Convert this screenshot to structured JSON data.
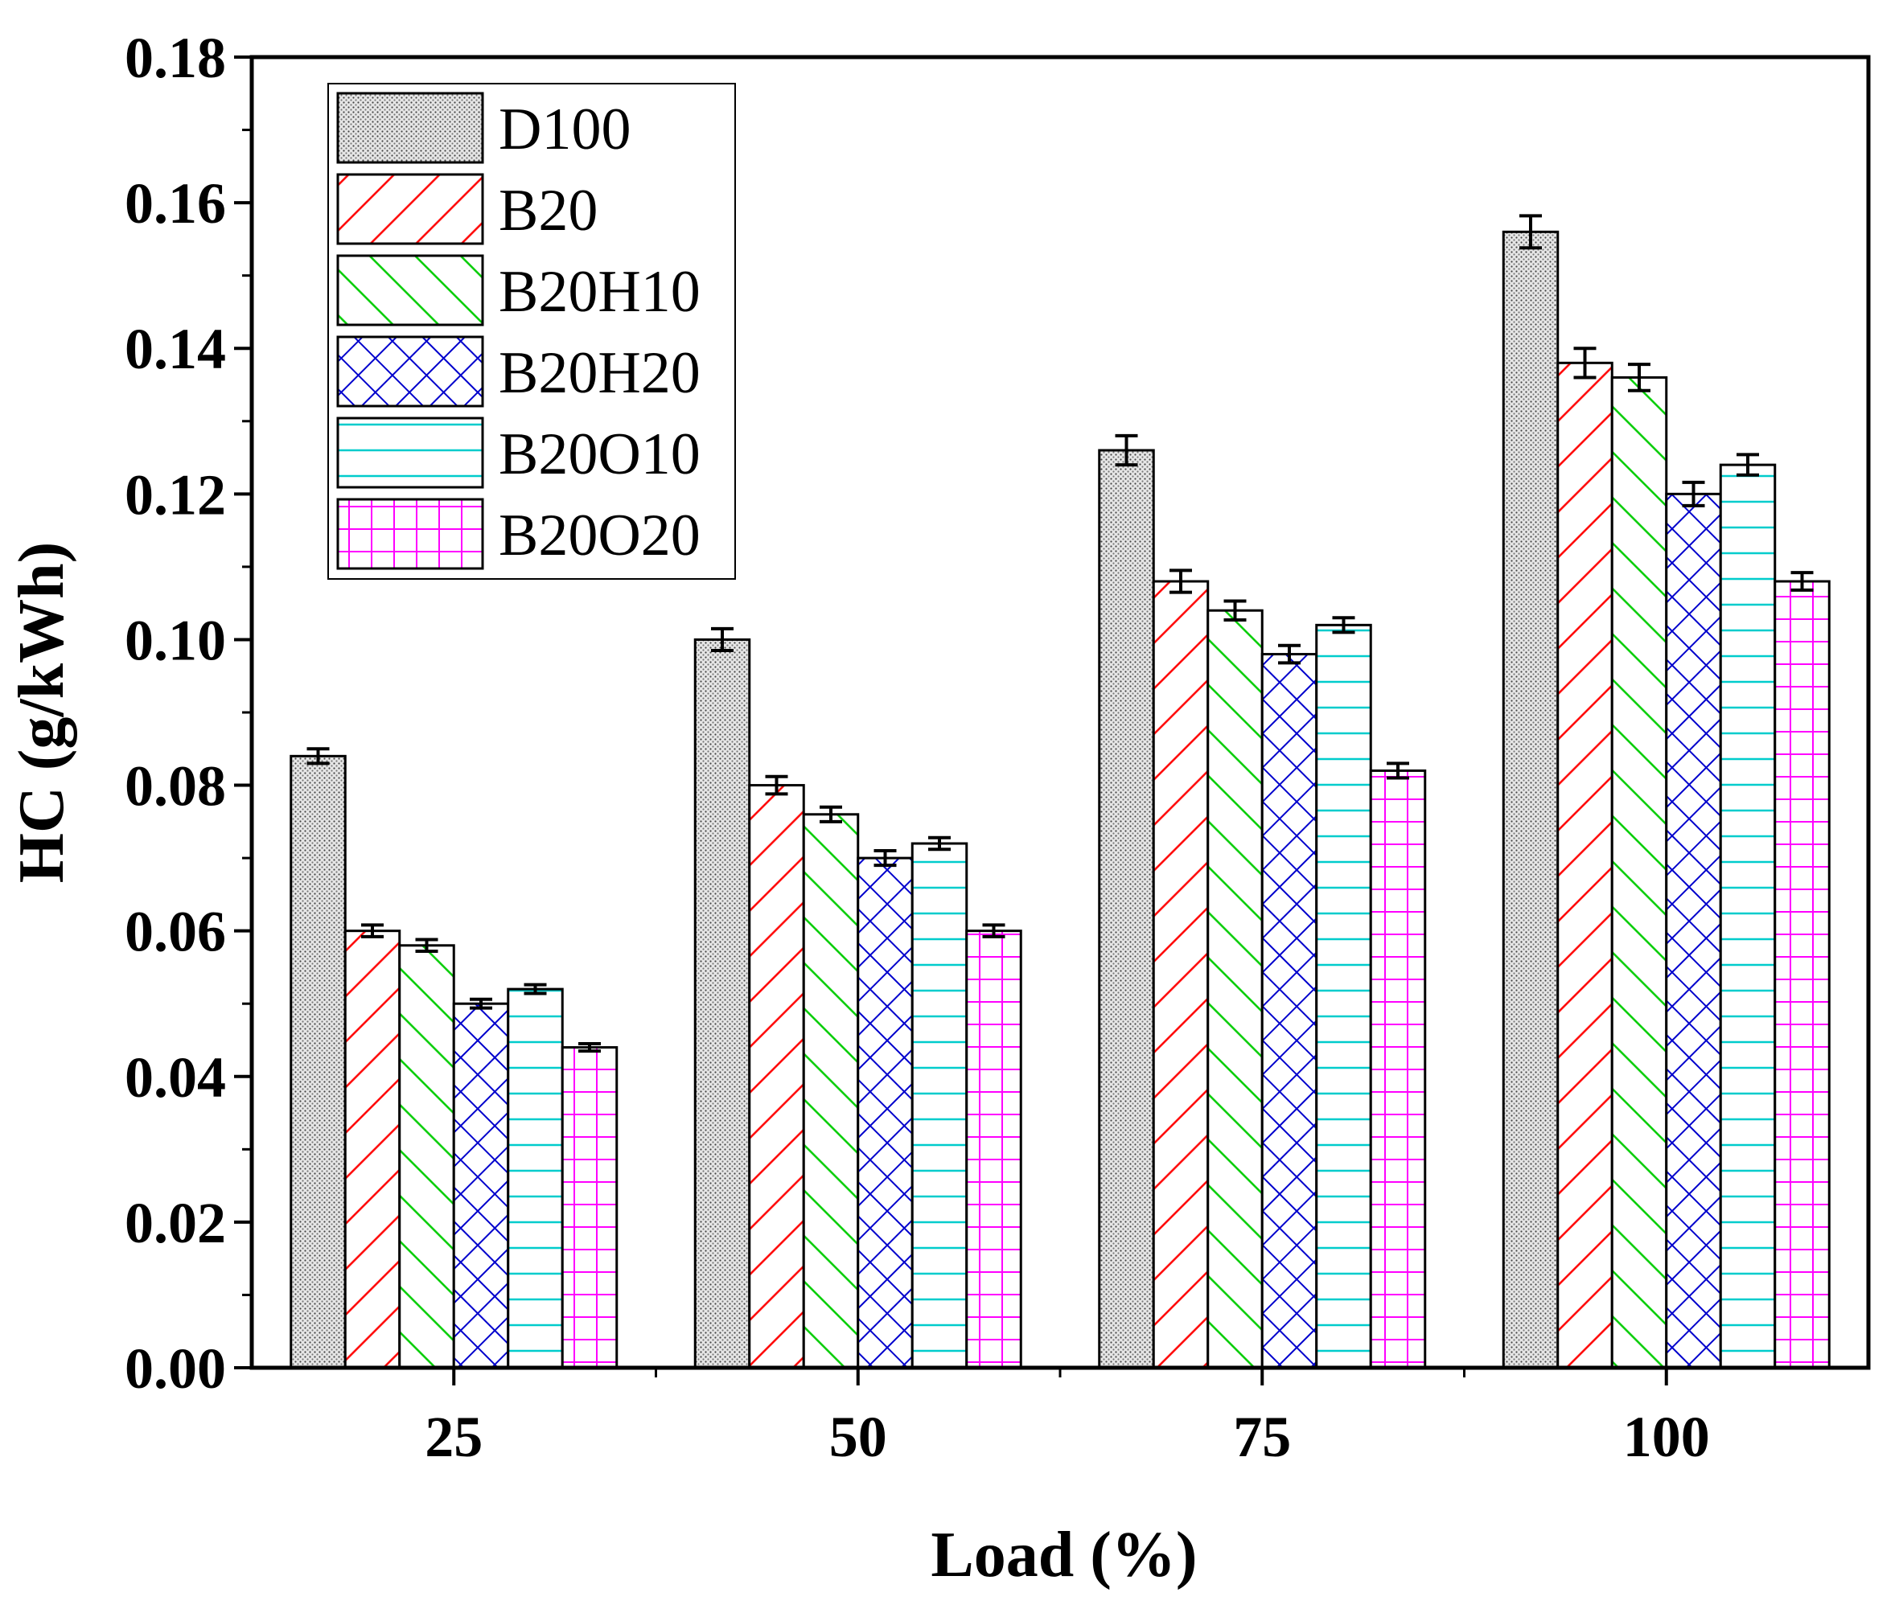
{
  "chart_data": {
    "type": "bar",
    "title": "",
    "xlabel": "Load (%)",
    "ylabel": "HC (g/kWh)",
    "categories": [
      "25",
      "50",
      "75",
      "100"
    ],
    "ylim": [
      0,
      0.18
    ],
    "y_ticks": [
      "0.00",
      "0.02",
      "0.04",
      "0.06",
      "0.08",
      "0.10",
      "0.12",
      "0.14",
      "0.16",
      "0.18"
    ],
    "legend_position": "top-left",
    "series": [
      {
        "name": "D100",
        "color": "#555555",
        "pattern": "dots",
        "values": [
          0.084,
          0.1,
          0.126,
          0.156
        ],
        "errors": [
          0.001,
          0.0015,
          0.002,
          0.0022
        ]
      },
      {
        "name": "B20",
        "color": "#ff0000",
        "pattern": "forward-diagonal",
        "values": [
          0.06,
          0.08,
          0.108,
          0.138
        ],
        "errors": [
          0.0008,
          0.0012,
          0.0015,
          0.002
        ]
      },
      {
        "name": "B20H10",
        "color": "#00cc00",
        "pattern": "back-diagonal",
        "values": [
          0.058,
          0.076,
          0.104,
          0.136
        ],
        "errors": [
          0.0008,
          0.001,
          0.0013,
          0.0018
        ]
      },
      {
        "name": "B20H20",
        "color": "#0000cc",
        "pattern": "crosshatch",
        "values": [
          0.05,
          0.07,
          0.098,
          0.12
        ],
        "errors": [
          0.0006,
          0.001,
          0.0012,
          0.0016
        ]
      },
      {
        "name": "B20O10",
        "color": "#00cccc",
        "pattern": "horizontal",
        "values": [
          0.052,
          0.072,
          0.102,
          0.124
        ],
        "errors": [
          0.0006,
          0.0008,
          0.001,
          0.0014
        ]
      },
      {
        "name": "B20O20",
        "color": "#ff00ff",
        "pattern": "grid",
        "values": [
          0.044,
          0.06,
          0.082,
          0.108
        ],
        "errors": [
          0.0005,
          0.0008,
          0.001,
          0.0012
        ]
      }
    ]
  }
}
